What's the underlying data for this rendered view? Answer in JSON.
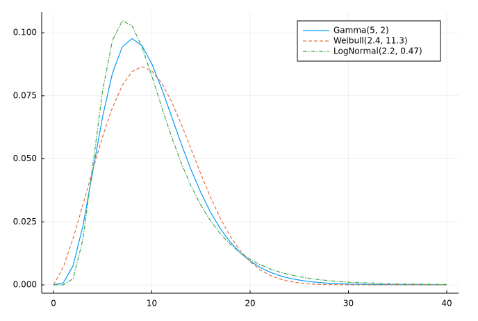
{
  "chart_data": {
    "type": "line",
    "x": [
      0,
      1,
      2,
      3,
      4,
      5,
      6,
      7,
      8,
      9,
      10,
      11,
      12,
      13,
      14,
      15,
      16,
      17,
      18,
      19,
      20,
      21,
      22,
      23,
      24,
      25,
      26,
      27,
      28,
      29,
      30,
      35,
      40
    ],
    "series": [
      {
        "name": "Gamma(5, 2)",
        "color": "#009af9",
        "dash": "solid",
        "values": [
          0,
          0.00079,
          0.00766,
          0.0235,
          0.0451,
          0.0668,
          0.084,
          0.0944,
          0.0977,
          0.0949,
          0.0877,
          0.0779,
          0.0669,
          0.0559,
          0.0456,
          0.0365,
          0.0286,
          0.0221,
          0.0169,
          0.0127,
          0.00946,
          0.00697,
          0.00509,
          0.00369,
          0.00265,
          0.0019,
          0.00134,
          0.00095,
          0.00067,
          0.00046,
          0.00032,
          5e-05,
          2e-05
        ]
      },
      {
        "name": "Weibull(2.4, 11.3)",
        "color": "#e26f46",
        "dash": "dashed",
        "values": [
          0,
          0.0071,
          0.01851,
          0.03183,
          0.04568,
          0.05889,
          0.07034,
          0.07913,
          0.08463,
          0.08654,
          0.0849,
          0.0801,
          0.07278,
          0.06374,
          0.05383,
          0.04387,
          0.03451,
          0.02619,
          0.01916,
          0.01354,
          0.00922,
          0.00605,
          0.00383,
          0.00234,
          0.00137,
          0.00078,
          0.00042,
          0.00022,
          0.00011,
          5e-05,
          3e-05,
          0,
          0
        ]
      },
      {
        "name": "LogNormal(2.2, 0.47)",
        "color": "#3da44d",
        "dash": "dashdot",
        "values": [
          0,
          1e-05,
          0.00249,
          0.01816,
          0.0474,
          0.07709,
          0.09702,
          0.10477,
          0.10267,
          0.09431,
          0.08289,
          0.07062,
          0.05886,
          0.0483,
          0.03919,
          0.03155,
          0.02526,
          0.02015,
          0.01603,
          0.01274,
          0.01012,
          0.00804,
          0.0064,
          0.00509,
          0.00406,
          0.00324,
          0.00259,
          0.00207,
          0.00167,
          0.00134,
          0.00108,
          0.00038,
          0.00014
        ]
      }
    ],
    "xlim": [
      -1.2,
      41.2
    ],
    "xticks": [
      0,
      10,
      20,
      30,
      40
    ],
    "ylim": [
      -0.0033,
      0.1083
    ],
    "yticks": [
      {
        "value": 0,
        "label": "0.000"
      },
      {
        "value": 0.025,
        "label": "0.025"
      },
      {
        "value": 0.05,
        "label": "0.050"
      },
      {
        "value": 0.075,
        "label": "0.075"
      },
      {
        "value": 0.1,
        "label": "0.100"
      }
    ],
    "grid": true,
    "legend": "top-right"
  }
}
